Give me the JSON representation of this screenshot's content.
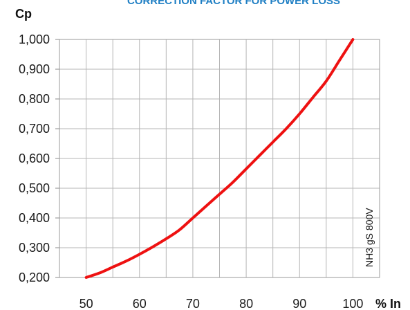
{
  "chart_data": {
    "type": "line",
    "title": "CORRECTION FACTOR FOR POWER LOSS",
    "xlabel": "% In",
    "ylabel": "Cp",
    "side_label": "NH3 gS 800V",
    "xlim": [
      45,
      105
    ],
    "ylim": [
      0.2,
      1.0
    ],
    "x_ticks": [
      50,
      60,
      70,
      80,
      90,
      100
    ],
    "x_tick_labels": [
      "50",
      "60",
      "70",
      "80",
      "90",
      "100"
    ],
    "y_ticks": [
      0.2,
      0.3,
      0.4,
      0.5,
      0.6,
      0.7,
      0.8,
      0.9,
      1.0
    ],
    "y_tick_labels": [
      "0,200",
      "0,300",
      "0,400",
      "0,500",
      "0,600",
      "0,700",
      "0,800",
      "0,900",
      "1,000"
    ],
    "grid": true,
    "line_color": "#ee1111",
    "series": [
      {
        "x": [
          50,
          52.5,
          55,
          57.5,
          60,
          62.5,
          65,
          67.5,
          70,
          72.5,
          75,
          77.5,
          80,
          82.5,
          85,
          87.5,
          90,
          92.5,
          95,
          97.5,
          100
        ],
        "values": [
          0.2,
          0.215,
          0.235,
          0.255,
          0.278,
          0.303,
          0.33,
          0.36,
          0.4,
          0.44,
          0.48,
          0.52,
          0.565,
          0.61,
          0.655,
          0.7,
          0.75,
          0.805,
          0.86,
          0.93,
          1.0
        ]
      }
    ]
  }
}
